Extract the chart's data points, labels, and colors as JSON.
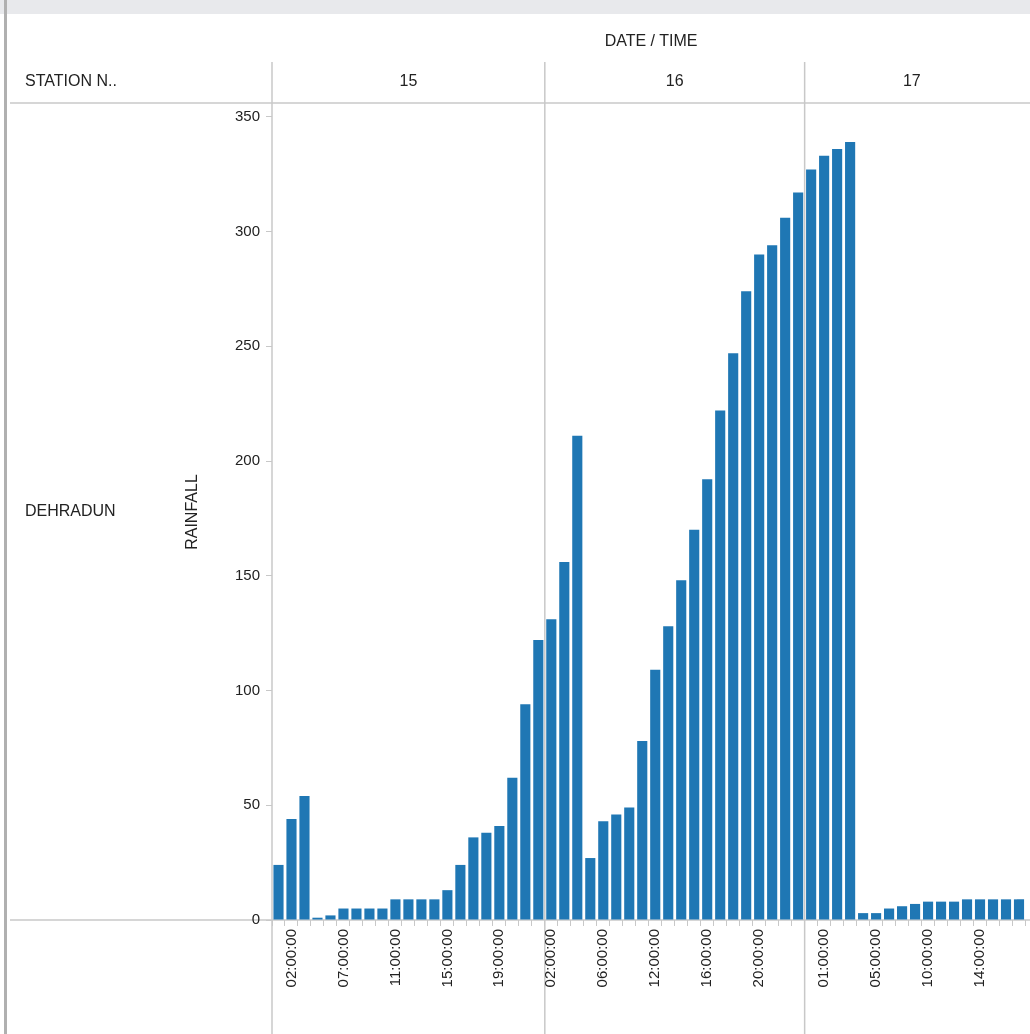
{
  "chart_data": {
    "type": "bar",
    "xlabel": "DATE / TIME",
    "ylabel": "RAINFALL",
    "annotations": [
      "STATION N..",
      "DEHRADUN",
      "15",
      "16",
      "17"
    ],
    "categories": [
      null,
      "02:00:00",
      null,
      null,
      null,
      "07:00:00",
      null,
      null,
      null,
      "11:00:00",
      null,
      null,
      null,
      "15:00:00",
      null,
      null,
      null,
      "19:00:00",
      null,
      null,
      null,
      "02:00:00",
      null,
      null,
      null,
      "06:00:00",
      null,
      null,
      null,
      "12:00:00",
      null,
      null,
      null,
      "16:00:00",
      null,
      null,
      null,
      "20:00:00",
      null,
      null,
      null,
      null,
      "01:00:00",
      null,
      null,
      null,
      "05:00:00",
      null,
      null,
      null,
      "10:00:00",
      null,
      null,
      null,
      "14:00:00",
      null,
      null,
      null
    ],
    "values": [
      24,
      44,
      54,
      1,
      2,
      5,
      5,
      5,
      5,
      9,
      9,
      9,
      9,
      13,
      24,
      36,
      38,
      41,
      62,
      94,
      122,
      131,
      156,
      211,
      27,
      43,
      46,
      49,
      78,
      109,
      128,
      148,
      170,
      192,
      222,
      247,
      274,
      290,
      294,
      306,
      317,
      327,
      333,
      336,
      339,
      3,
      3,
      5,
      6,
      7,
      8,
      8,
      8,
      9,
      9,
      9,
      9,
      9
    ],
    "color": "#1f77b4",
    "ylim": [
      0,
      356
    ],
    "yticks": [
      0,
      50,
      100,
      150,
      200,
      250,
      300,
      350
    ],
    "grid": false,
    "legend": false
  }
}
